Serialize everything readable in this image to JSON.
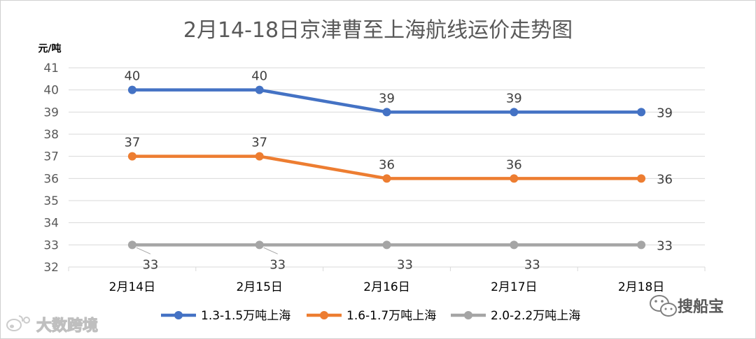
{
  "chart_data": {
    "type": "line",
    "title": "2月14-18日京津曹至上海航线运价走势图",
    "ylabel": "元/吨",
    "xlabel": "",
    "categories": [
      "2月14日",
      "2月15日",
      "2月16日",
      "2月17日",
      "2月18日"
    ],
    "ylim": [
      32,
      41
    ],
    "yticks": [
      32,
      33,
      34,
      35,
      36,
      37,
      38,
      39,
      40,
      41
    ],
    "grid": true,
    "legend_position": "bottom",
    "series": [
      {
        "name": "1.3-1.5万吨上海",
        "values": [
          40,
          40,
          39,
          39,
          39
        ],
        "color": "#4472C4",
        "label_pos": "above"
      },
      {
        "name": "1.6-1.7万吨上海",
        "values": [
          37,
          37,
          36,
          36,
          36
        ],
        "color": "#ED7D31",
        "label_pos": "above"
      },
      {
        "name": "2.0-2.2万吨上海",
        "values": [
          33,
          33,
          33,
          33,
          33
        ],
        "color": "#A5A5A5",
        "label_pos": "below"
      }
    ]
  },
  "watermarks": {
    "left_text": "大数跨境",
    "right_text": "搜船宝",
    "left_icon": "weibo-icon",
    "right_icon": "wechat-icon"
  }
}
